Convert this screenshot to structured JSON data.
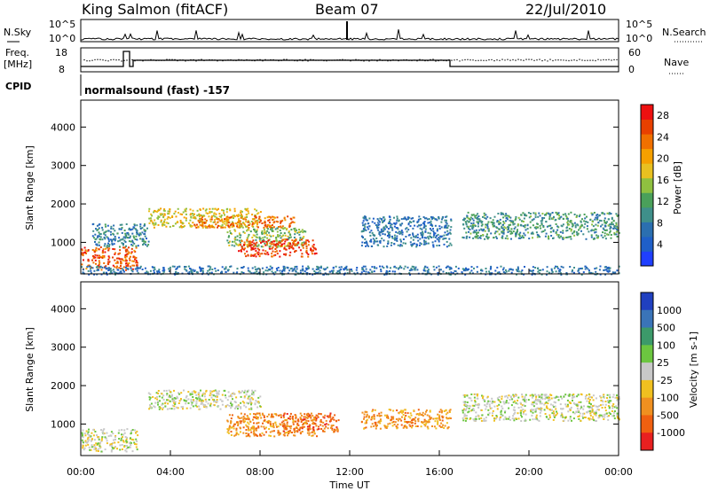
{
  "header": {
    "station": "King Salmon (fitACF)",
    "beam": "Beam 07",
    "date": "22/Jul/2010"
  },
  "strip": {
    "nsky_label": "N.Sky",
    "nsearch_label": "N.Search",
    "noise_ticks": [
      "10^5",
      "10^0"
    ],
    "freq_label": "Freq.",
    "freq_unit": "[MHz]",
    "freq_ticks": [
      "18",
      "8"
    ],
    "nave_label": "Nave",
    "nave_ticks": [
      "60",
      "0"
    ],
    "cpid_label": "CPID",
    "cpid_text": "normalsound (fast) -157"
  },
  "colors": {
    "power": [
      "#1f3fff",
      "#1f5fc8",
      "#2b6fb0",
      "#3f8f8a",
      "#4aa05a",
      "#8fc040",
      "#e8c020",
      "#f5a000",
      "#f07000",
      "#e84000",
      "#ee1010"
    ],
    "velocity": [
      "#2040c0",
      "#3a74b8",
      "#3c9a6a",
      "#6cc640",
      "#c8c8c8",
      "#f0c020",
      "#f09020",
      "#f06010",
      "#e82020"
    ]
  },
  "chart_data": [
    {
      "type": "heatmap",
      "title": "Power",
      "ylabel": "Slant Range [km]",
      "xlabel": "Time UT",
      "x_ticks": [
        "00:00",
        "04:00",
        "08:00",
        "12:00",
        "16:00",
        "20:00",
        "00:00"
      ],
      "x_range_hours": [
        0,
        24
      ],
      "y_ticks": [
        1000,
        2000,
        3000,
        4000
      ],
      "ylim": [
        180,
        4700
      ],
      "colorbar_label": "Power [dB]",
      "colorbar_ticks": [
        4,
        8,
        12,
        16,
        20,
        24,
        28
      ],
      "colorbar_range": [
        0,
        30
      ],
      "echo_regions": [
        {
          "t": [
            0.0,
            2.5
          ],
          "range": [
            300,
            900
          ],
          "value": 26
        },
        {
          "t": [
            0.5,
            3.0
          ],
          "range": [
            900,
            1500
          ],
          "value": 8
        },
        {
          "t": [
            3.0,
            8.0
          ],
          "range": [
            1400,
            1900
          ],
          "value": 18
        },
        {
          "t": [
            5.0,
            9.5
          ],
          "range": [
            1400,
            1700
          ],
          "value": 24
        },
        {
          "t": [
            6.5,
            10.0
          ],
          "range": [
            900,
            1400
          ],
          "value": 14
        },
        {
          "t": [
            7.0,
            10.5
          ],
          "range": [
            650,
            1100
          ],
          "value": 27
        },
        {
          "t": [
            12.5,
            16.5
          ],
          "range": [
            900,
            1700
          ],
          "value": 6
        },
        {
          "t": [
            17.0,
            24.0
          ],
          "range": [
            1100,
            1800
          ],
          "value": 10
        },
        {
          "t": [
            0.0,
            24.0
          ],
          "range": [
            180,
            400
          ],
          "value": 6
        }
      ]
    },
    {
      "type": "heatmap",
      "title": "Velocity",
      "ylabel": "Slant Range [km]",
      "xlabel": "Time UT",
      "x_ticks": [
        "00:00",
        "04:00",
        "08:00",
        "12:00",
        "16:00",
        "20:00",
        "00:00"
      ],
      "x_range_hours": [
        0,
        24
      ],
      "y_ticks": [
        1000,
        2000,
        3000,
        4000
      ],
      "ylim": [
        180,
        4700
      ],
      "colorbar_label": "Velocity [m s-1]",
      "colorbar_ticks": [
        "1000",
        "500",
        "100",
        "25",
        "-25",
        "-100",
        "-500",
        "-1000"
      ],
      "echo_regions": [
        {
          "t": [
            0.0,
            2.5
          ],
          "range": [
            300,
            900
          ],
          "value": 0
        },
        {
          "t": [
            3.0,
            8.0
          ],
          "range": [
            1400,
            1900
          ],
          "value": 0
        },
        {
          "t": [
            6.5,
            10.5
          ],
          "range": [
            700,
            1300
          ],
          "value": -150
        },
        {
          "t": [
            9.0,
            11.5
          ],
          "range": [
            800,
            1300
          ],
          "value": -600
        },
        {
          "t": [
            12.5,
            16.5
          ],
          "range": [
            900,
            1400
          ],
          "value": -120
        },
        {
          "t": [
            17.0,
            24.0
          ],
          "range": [
            1100,
            1800
          ],
          "value": 0
        }
      ]
    }
  ]
}
